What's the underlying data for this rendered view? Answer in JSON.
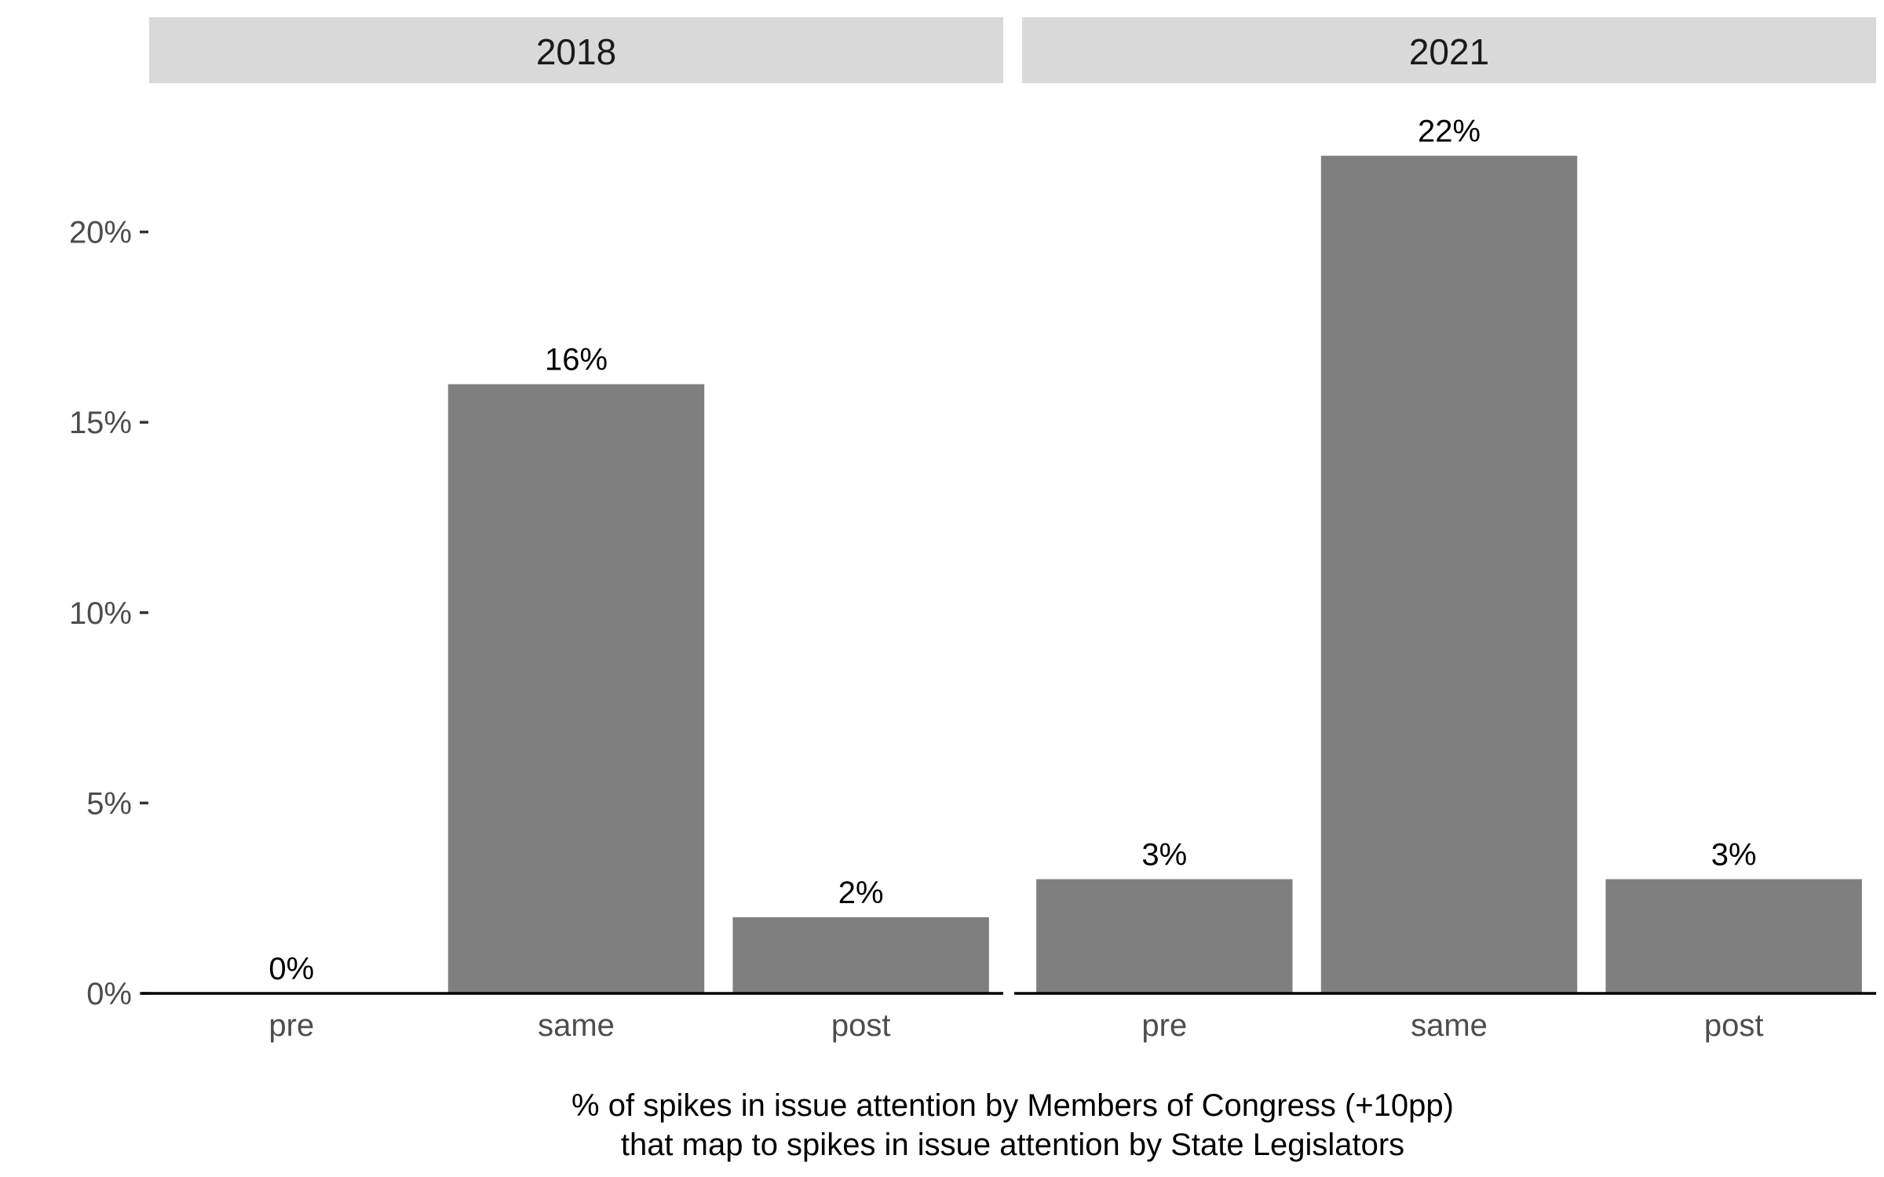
{
  "chart_data": {
    "type": "bar",
    "facet_by": "year",
    "categories": [
      "pre",
      "same",
      "post"
    ],
    "panels": [
      {
        "title": "2018",
        "values": [
          0,
          16,
          2
        ],
        "labels": [
          "0%",
          "16%",
          "2%"
        ]
      },
      {
        "title": "2021",
        "values": [
          3,
          22,
          3
        ],
        "labels": [
          "3%",
          "22%",
          "3%"
        ]
      }
    ],
    "bar_color": "#7f7f7f",
    "xlabel_lines": [
      "% of spikes in issue attention by Members of Congress (+10pp)",
      "that map to spikes in issue attention by State Legislators"
    ],
    "ylabel": "",
    "ylim": [
      0,
      23
    ],
    "yticks": [
      0,
      5,
      10,
      15,
      20
    ],
    "ytick_labels": [
      "0%",
      "5%",
      "10%",
      "15%",
      "20%"
    ],
    "grid": false
  }
}
